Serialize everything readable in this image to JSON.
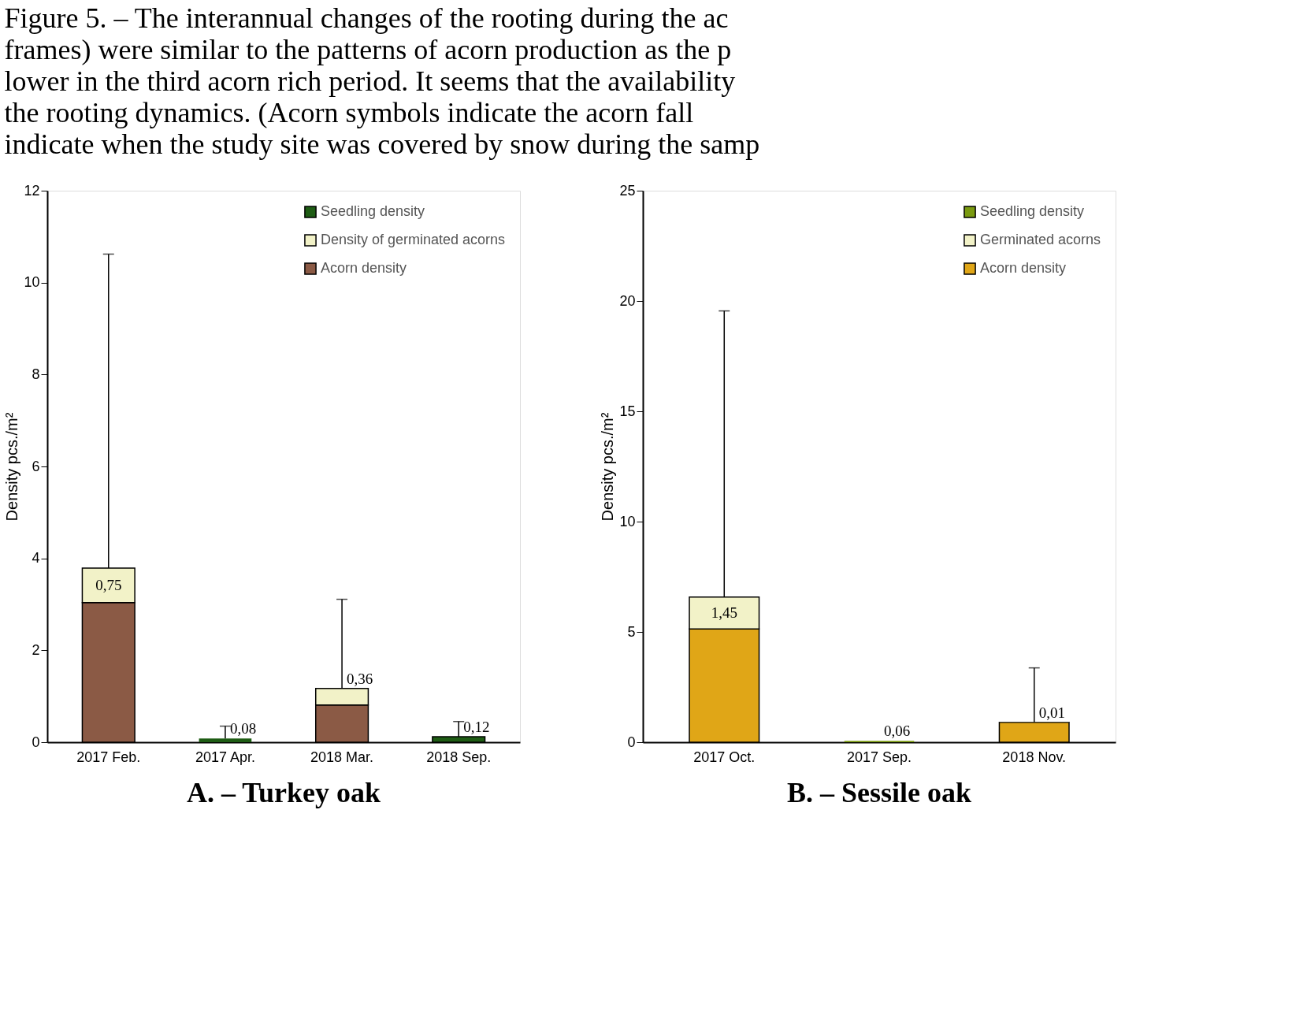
{
  "chart_data": [
    {
      "type": "bar",
      "stacked": true,
      "title": "A. – Turkey oak",
      "ylabel": "Density pcs./m²",
      "annotations": [
        "Figure 5. – The interannual changes of the rooting during the ac",
        "frames) were similar to the patterns of acorn production as the p",
        "lower in the third acorn rich period. It seems that the availability",
        "the rooting dynamics. (Acorn symbols indicate the acorn fall",
        "indicate when the study site was covered by snow during the samp"
      ],
      "categories": [
        "2017 Feb.",
        "2017 Apr.",
        "2018 Mar.",
        "2018 Sep."
      ],
      "series": [
        {
          "name": "Acorn density",
          "color": "#8b5a45",
          "values": [
            3.04,
            0,
            0.81,
            0
          ]
        },
        {
          "name": "Density of germinated acorns",
          "color": "#f2f2c8",
          "values": [
            0.75,
            0,
            0.36,
            0
          ],
          "value_labels": [
            "0,75",
            null,
            "0,36",
            null
          ],
          "errors": [
            [
              3.79,
              10.62
            ],
            null,
            [
              1.17,
              3.11
            ],
            null
          ]
        },
        {
          "name": "Seedling density",
          "color": "#1e5c14",
          "values": [
            0,
            0.08,
            0,
            0.12
          ],
          "value_labels": [
            null,
            "0,08",
            null,
            "0,12"
          ],
          "errors": [
            null,
            [
              0.08,
              0.35
            ],
            null,
            [
              0.12,
              0.45
            ]
          ]
        }
      ],
      "ylim": [
        0,
        12
      ],
      "yticks": [
        0,
        2,
        4,
        6,
        8,
        10,
        12
      ],
      "grid": false,
      "legend": "top right"
    },
    {
      "type": "bar",
      "stacked": true,
      "title": "B. – Sessile oak",
      "ylabel": "Density pcs./m²",
      "categories": [
        "2017 Oct.",
        "2017 Sep.",
        "2018 Nov."
      ],
      "series": [
        {
          "name": "Acorn density",
          "color": "#e0a617",
          "values": [
            5.13,
            0,
            0.9
          ]
        },
        {
          "name": "Germinated acorns",
          "color": "#f2f2c8",
          "values": [
            1.45,
            0,
            0.01
          ],
          "value_labels": [
            "1,45",
            null,
            "0,01"
          ],
          "errors": [
            [
              6.58,
              19.55
            ],
            null,
            [
              0.91,
              3.37
            ]
          ]
        },
        {
          "name": "Seedling density",
          "color": "#7a9a10",
          "values": [
            0,
            0.06,
            0
          ],
          "value_labels": [
            null,
            "0,06",
            null
          ]
        }
      ],
      "ylim": [
        0,
        25
      ],
      "yticks": [
        0,
        5,
        10,
        15,
        20,
        25
      ],
      "grid": false,
      "legend": "top right"
    }
  ]
}
